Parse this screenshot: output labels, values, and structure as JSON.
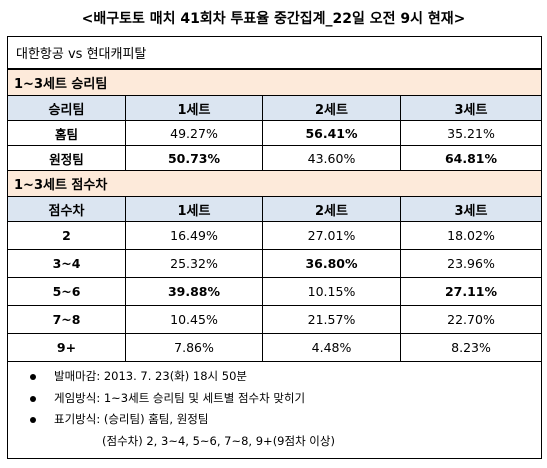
{
  "title": "<배구토토 매치 41회차 투표율 중간집계_22일 오전 9시 현재>",
  "match": "대한항공 vs 현대캐피탈",
  "winner_section": {
    "heading": "1~3세트 승리팀",
    "columns": [
      "승리팀",
      "1세트",
      "2세트",
      "3세트"
    ],
    "rows": [
      {
        "label": "홈팀",
        "values": [
          "49.27%",
          "56.41%",
          "35.21%"
        ]
      },
      {
        "label": "원정팀",
        "values": [
          "50.73%",
          "43.60%",
          "64.81%"
        ]
      }
    ]
  },
  "margin_section": {
    "heading": "1~3세트 점수차",
    "columns": [
      "점수차",
      "1세트",
      "2세트",
      "3세트"
    ],
    "rows": [
      {
        "label": "2",
        "values": [
          "16.49%",
          "27.01%",
          "18.02%"
        ]
      },
      {
        "label": "3~4",
        "values": [
          "25.32%",
          "36.80%",
          "23.96%"
        ]
      },
      {
        "label": "5~6",
        "values": [
          "39.88%",
          "10.15%",
          "27.11%"
        ]
      },
      {
        "label": "7~8",
        "values": [
          "10.45%",
          "21.57%",
          "22.70%"
        ]
      },
      {
        "label": "9+",
        "values": [
          "7.86%",
          "4.48%",
          "8.23%"
        ]
      }
    ]
  },
  "notes": {
    "deadline": "발매마감: 2013. 7. 23(화) 18시 50분",
    "method": "게임방식: 1~3세트 승리팀 및 세트별 점수차 맞히기",
    "notation": "표기방식: (승리팀) 홈팀, 원정팀",
    "notation_sub": "(점수차) 2, 3~4, 5~6, 7~8, 9+(9점차 이상)"
  }
}
